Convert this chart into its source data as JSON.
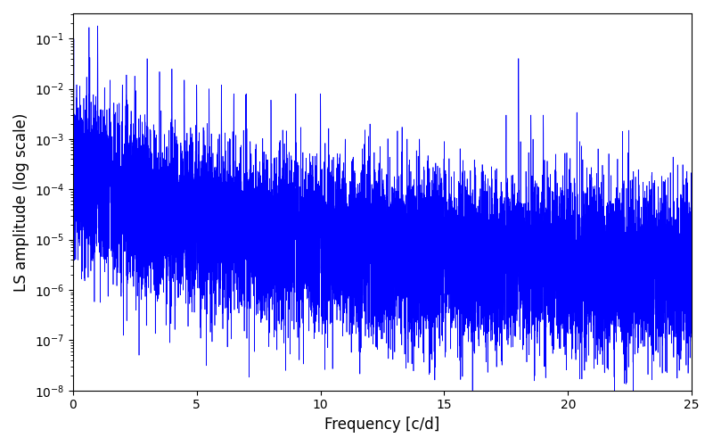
{
  "xlabel": "Frequency [c/d]",
  "ylabel": "LS amplitude (log scale)",
  "xlim": [
    0,
    25
  ],
  "ylim_log_min": -8,
  "ylim_log_max": -0.5,
  "line_color": "#0000ff",
  "line_width": 0.5,
  "figsize": [
    8.0,
    5.0
  ],
  "dpi": 100,
  "seed": 12345,
  "n_points": 15000,
  "freq_max": 25.0,
  "background_decay": 1.5,
  "noise_sigma": 1.8,
  "base_level": 0.0003,
  "xticks": [
    0,
    5,
    10,
    15,
    20,
    25
  ],
  "peaks": [
    {
      "f": 1.0,
      "amp": 0.18
    },
    {
      "f": 1.5,
      "amp": 0.015
    },
    {
      "f": 2.0,
      "amp": 0.012
    },
    {
      "f": 2.5,
      "amp": 0.018
    },
    {
      "f": 3.0,
      "amp": 0.04
    },
    {
      "f": 3.5,
      "amp": 0.022
    },
    {
      "f": 4.0,
      "amp": 0.025
    },
    {
      "f": 4.5,
      "amp": 0.015
    },
    {
      "f": 5.0,
      "amp": 0.012
    },
    {
      "f": 5.5,
      "amp": 0.01
    },
    {
      "f": 6.0,
      "amp": 0.012
    },
    {
      "f": 6.5,
      "amp": 0.008
    },
    {
      "f": 7.0,
      "amp": 0.008
    },
    {
      "f": 8.0,
      "amp": 0.006
    },
    {
      "f": 9.0,
      "amp": 0.008
    },
    {
      "f": 10.0,
      "amp": 0.008
    },
    {
      "f": 11.0,
      "amp": 0.001
    },
    {
      "f": 12.0,
      "amp": 0.002
    },
    {
      "f": 13.5,
      "amp": 0.001
    },
    {
      "f": 14.0,
      "amp": 0.001
    },
    {
      "f": 15.0,
      "amp": 0.0008
    },
    {
      "f": 17.5,
      "amp": 0.003
    },
    {
      "f": 18.0,
      "amp": 0.04
    },
    {
      "f": 18.5,
      "amp": 0.003
    },
    {
      "f": 19.0,
      "amp": 0.003
    },
    {
      "f": 19.5,
      "amp": 0.0005
    },
    {
      "f": 22.0,
      "amp": 0.0004
    },
    {
      "f": 23.5,
      "amp": 0.00015
    }
  ]
}
